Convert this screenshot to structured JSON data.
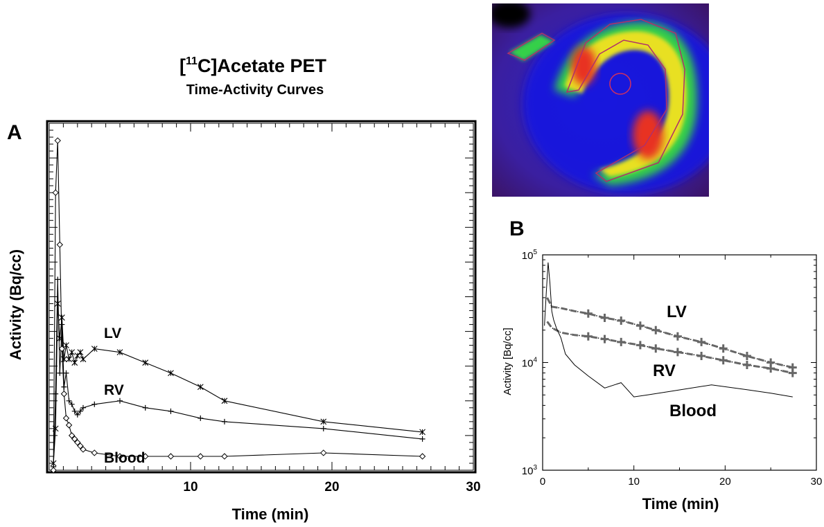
{
  "figure": {
    "title_iso": "11",
    "title_main": "C]Acetate PET",
    "subtitle": "Time-Activity Curves"
  },
  "chart_data": [
    {
      "panel": "A",
      "type": "line",
      "xlabel": "Time (min)",
      "ylabel": "Activity (Bq/cc)",
      "xlim": [
        0,
        30
      ],
      "xticks": [
        10,
        20,
        30
      ],
      "ylim": [
        0,
        100
      ],
      "y_units": "relative (no numeric labels shown)",
      "annotations": [
        "LV",
        "RV",
        "Blood"
      ],
      "series": [
        {
          "name": "LV",
          "marker": "asterisk",
          "x": [
            0.3,
            0.45,
            0.6,
            0.75,
            0.9,
            1.05,
            1.2,
            1.4,
            1.6,
            1.8,
            2.0,
            2.2,
            2.4,
            3.2,
            5.0,
            6.8,
            8.6,
            10.7,
            12.4,
            19.4,
            26.4
          ],
          "y": [
            2,
            12,
            48,
            38,
            44,
            32,
            36,
            32,
            34,
            31,
            33,
            34,
            32,
            35,
            34,
            31,
            28,
            24,
            20,
            14,
            11
          ]
        },
        {
          "name": "RV",
          "marker": "plus",
          "x": [
            0.3,
            0.45,
            0.6,
            0.75,
            0.9,
            1.05,
            1.2,
            1.4,
            1.6,
            1.8,
            2.0,
            2.2,
            2.4,
            3.2,
            5.0,
            6.8,
            8.6,
            10.7,
            12.4,
            19.4,
            26.4
          ],
          "y": [
            1,
            22,
            55,
            28,
            42,
            24,
            28,
            20,
            19,
            17,
            16,
            17,
            18,
            19,
            20,
            18,
            17,
            15,
            14,
            12,
            9
          ]
        },
        {
          "name": "Blood",
          "marker": "diamond",
          "x": [
            0.3,
            0.45,
            0.6,
            0.75,
            0.9,
            1.05,
            1.2,
            1.4,
            1.6,
            1.8,
            2.0,
            2.2,
            2.4,
            3.2,
            5.0,
            6.8,
            8.6,
            10.7,
            12.4,
            19.4,
            26.4
          ],
          "y": [
            0,
            80,
            95,
            65,
            35,
            22,
            15,
            13,
            10,
            9,
            8,
            7,
            6,
            5,
            4,
            4,
            4,
            4,
            4,
            5,
            4
          ]
        }
      ]
    },
    {
      "panel": "B",
      "type": "line",
      "xlabel": "Time (min)",
      "ylabel": "Activity [Bq/cc]",
      "xlim": [
        0,
        30
      ],
      "xticks": [
        0,
        10,
        20,
        30
      ],
      "yscale": "log",
      "ylim": [
        1000,
        100000
      ],
      "yticks": [
        1000,
        10000,
        100000
      ],
      "annotations": [
        "LV",
        "RV",
        "Blood"
      ],
      "series": [
        {
          "name": "LV",
          "marker": "plus",
          "x": [
            0.5,
            1.0,
            2.0,
            3.5,
            5.0,
            6.8,
            8.6,
            10.7,
            12.4,
            14.8,
            17.4,
            19.8,
            22.4,
            25.0,
            27.4
          ],
          "y": [
            40000,
            33000,
            32000,
            30000,
            28500,
            26000,
            24500,
            22000,
            20000,
            17500,
            15500,
            13500,
            11500,
            10000,
            9000
          ]
        },
        {
          "name": "RV",
          "marker": "plus",
          "x": [
            0.5,
            1.0,
            2.0,
            3.5,
            5.0,
            6.8,
            8.6,
            10.7,
            12.4,
            14.8,
            17.4,
            19.8,
            22.4,
            25.0,
            27.4
          ],
          "y": [
            24000,
            21000,
            19000,
            18000,
            17500,
            16500,
            15500,
            14500,
            13500,
            12500,
            11500,
            10500,
            9500,
            8800,
            8000
          ]
        },
        {
          "name": "Blood",
          "marker": "none",
          "x": [
            0.2,
            0.4,
            0.6,
            0.8,
            1.0,
            1.2,
            1.5,
            2.0,
            2.5,
            3.5,
            5.0,
            6.8,
            8.6,
            10.0,
            11.5,
            14.0,
            18.5,
            22.4,
            25.0,
            27.4
          ],
          "y": [
            22000,
            45000,
            85000,
            55000,
            30000,
            25000,
            21000,
            17000,
            12000,
            9500,
            7500,
            5800,
            6500,
            4800,
            5000,
            5400,
            6200,
            5600,
            5200,
            4800
          ]
        }
      ]
    }
  ],
  "panels": {
    "A": {
      "label": "A"
    },
    "B": {
      "label": "B"
    }
  },
  "colors": {
    "axis": "#000000",
    "series_b_fit": "#666666",
    "pet_background": "#4a1a8c"
  }
}
